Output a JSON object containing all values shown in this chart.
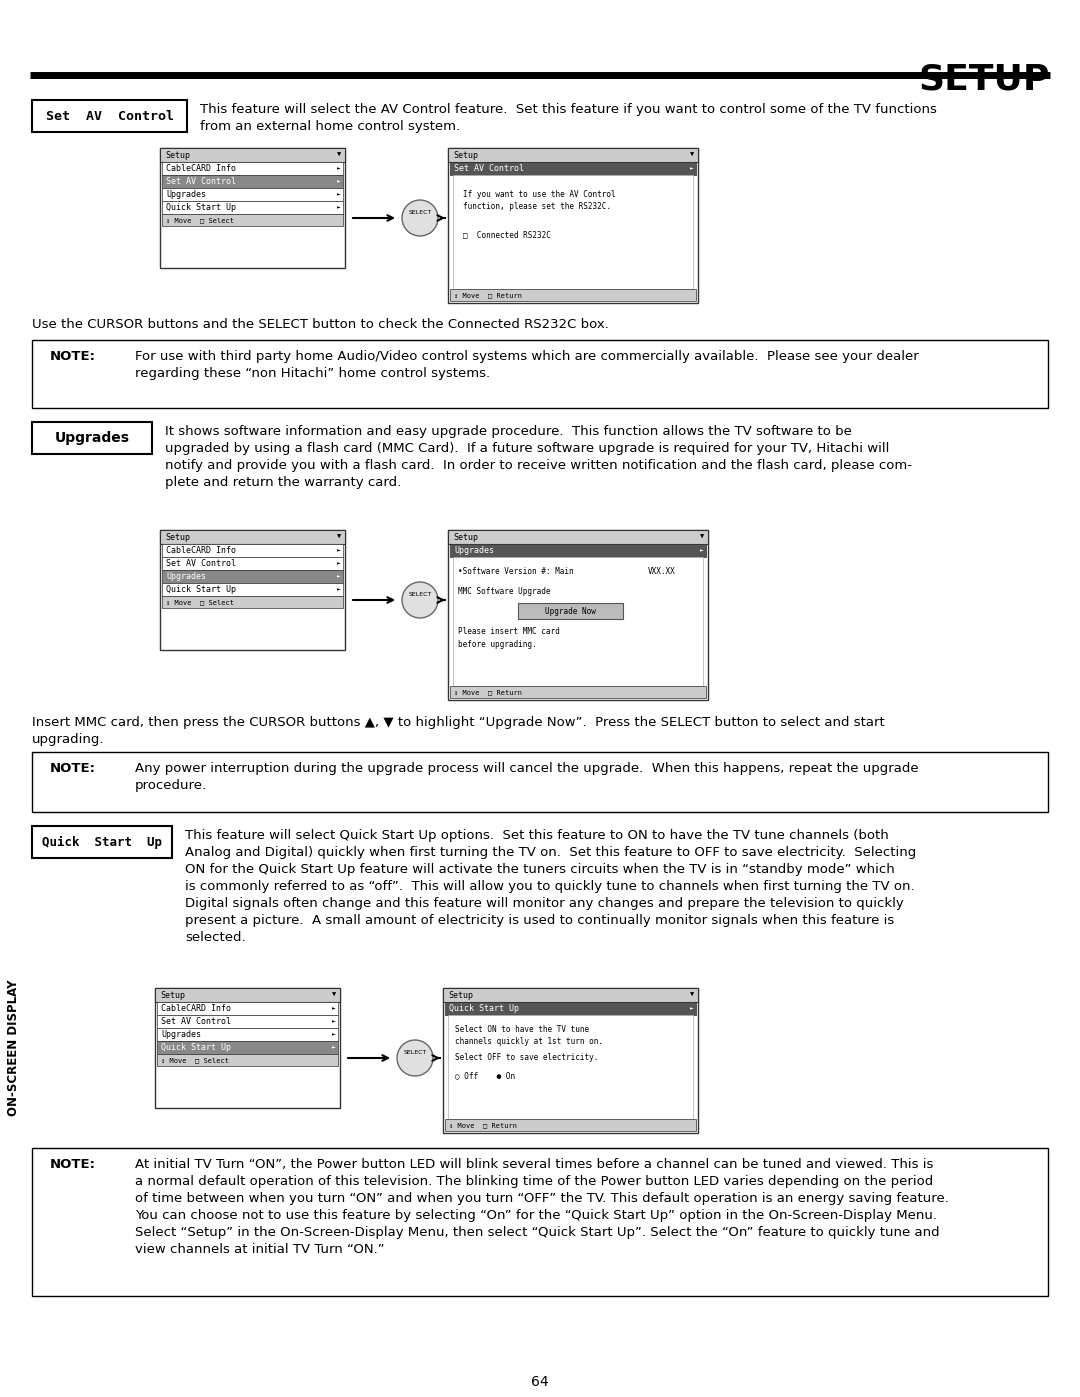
{
  "title": "SETUP",
  "bg_color": "#ffffff",
  "text_color": "#000000",
  "page_number": "64",
  "sidebar_text": "ON-SCREEN DISPLAY",
  "section1_label": "Set  AV  Control",
  "section1_text": "This feature will select the AV Control feature.  Set this feature if you want to control some of the TV functions\nfrom an external home control system.",
  "cursor_note": "Use the CURSOR buttons and the SELECT button to check the Connected RS232C box.",
  "note1_label": "NOTE:",
  "note1_text": "For use with third party home Audio/Video control systems which are commercially available.  Please see your dealer\nregarding these “non Hitachi” home control systems.",
  "section2_label": "Upgrades",
  "section2_text": "It shows software information and easy upgrade procedure.  This function allows the TV software to be\nupgraded by using a flash card (MMC Card).  If a future software upgrade is required for your TV, Hitachi will\nnotify and provide you with a flash card.  In order to receive written notification and the flash card, please com-\nplete and return the warranty card.",
  "upgrade_note": "Insert MMC card, then press the CURSOR buttons ▲, ▼ to highlight “Upgrade Now”.  Press the SELECT button to select and start\nupgrading.",
  "note2_label": "NOTE:",
  "note2_text": "Any power interruption during the upgrade process will cancel the upgrade.  When this happens, repeat the upgrade\nprocedure.",
  "section3_label": "Quick  Start  Up",
  "section3_text": "This feature will select Quick Start Up options.  Set this feature to ON to have the TV tune channels (both\nAnalog and Digital) quickly when first turning the TV on.  Set this feature to OFF to save electricity.  Selecting\nON for the Quick Start Up feature will activate the tuners circuits when the TV is in “standby mode” which\nis commonly referred to as “off”.  This will allow you to quickly tune to channels when first turning the TV on.\nDigital signals often change and this feature will monitor any changes and prepare the television to quickly\npresent a picture.  A small amount of electricity is used to continually monitor signals when this feature is\nselected.",
  "note3_label": "NOTE:",
  "note3_text": "At initial TV Turn “ON”, the Power button LED will blink several times before a channel can be tuned and viewed. This is\na normal default operation of this television. The blinking time of the Power button LED varies depending on the period\nof time between when you turn “ON” and when you turn “OFF” the TV. This default operation is an energy saving feature.\nYou can choose not to use this feature by selecting “On” for the “Quick Start Up” option in the On-Screen-Display Menu.\nSelect “Setup” in the On-Screen-Display Menu, then select “Quick Start Up”. Select the “On” feature to quickly tune and\nview channels at initial TV Turn “ON.”"
}
